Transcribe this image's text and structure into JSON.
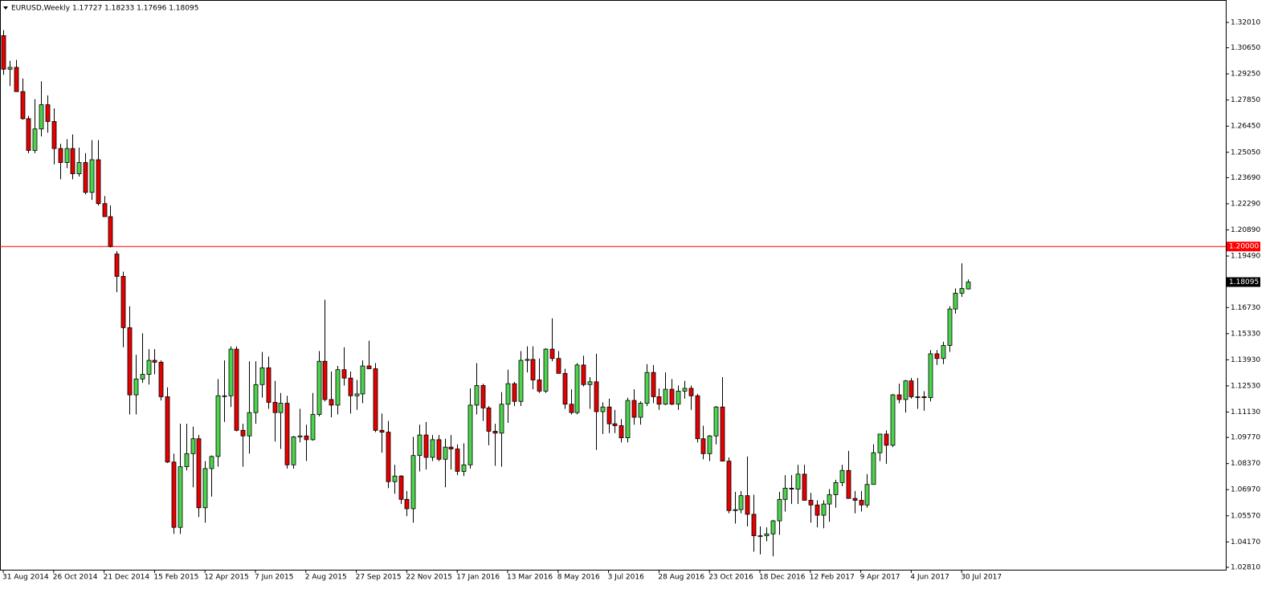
{
  "chart_data": {
    "type": "candlestick",
    "title": "EURUSD,Weekly  1.17727 1.18233 1.17696 1.18095",
    "categories": [
      "31 Aug 2014",
      null,
      null,
      null,
      null,
      null,
      null,
      null,
      "26 Oct 2014",
      null,
      null,
      null,
      null,
      null,
      null,
      null,
      "21 Dec 2014",
      null,
      null,
      null,
      null,
      null,
      null,
      null,
      "15 Feb 2015",
      null,
      null,
      null,
      null,
      null,
      null,
      null,
      "12 Apr 2015",
      null,
      null,
      null,
      null,
      null,
      null,
      null,
      "7 Jun 2015",
      null,
      null,
      null,
      null,
      null,
      null,
      null,
      "2 Aug 2015",
      null,
      null,
      null,
      null,
      null,
      null,
      null,
      "27 Sep 2015",
      null,
      null,
      null,
      null,
      null,
      null,
      null,
      "22 Nov 2015",
      null,
      null,
      null,
      null,
      null,
      null,
      null,
      "17 Jan 2016",
      null,
      null,
      null,
      null,
      null,
      null,
      null,
      "13 Mar 2016",
      null,
      null,
      null,
      null,
      null,
      null,
      null,
      "8 May 2016",
      null,
      null,
      null,
      null,
      null,
      null,
      null,
      "3 Jul 2016",
      null,
      null,
      null,
      null,
      null,
      null,
      null,
      "28 Aug 2016",
      null,
      null,
      null,
      null,
      null,
      null,
      null,
      "23 Oct 2016",
      null,
      null,
      null,
      null,
      null,
      null,
      null,
      "18 Dec 2016",
      null,
      null,
      null,
      null,
      null,
      null,
      null,
      "12 Feb 2017",
      null,
      null,
      null,
      null,
      null,
      null,
      null,
      "9 Apr 2017",
      null,
      null,
      null,
      null,
      null,
      null,
      null,
      "4 Jun 2017",
      null,
      null,
      null,
      null,
      null,
      null,
      null,
      "30 Jul 2017",
      null
    ],
    "open": [
      1.313,
      1.295,
      1.296,
      1.283,
      1.2685,
      1.2515,
      1.263,
      1.276,
      1.267,
      1.2525,
      1.245,
      1.2525,
      1.239,
      1.245,
      1.229,
      1.2465,
      1.223,
      1.216,
      1.196,
      1.184,
      1.1565,
      1.1205,
      1.129,
      1.1315,
      1.139,
      1.138,
      1.1195,
      1.0845,
      1.0495,
      1.082,
      1.089,
      1.097,
      1.06,
      1.081,
      1.0875,
      1.12,
      1.12,
      1.145,
      1.1015,
      1.0985,
      1.111,
      1.126,
      1.135,
      1.1165,
      1.111,
      1.116,
      1.083,
      1.098,
      1.0985,
      1.0965,
      1.11,
      1.1385,
      1.118,
      1.115,
      1.134,
      1.1295,
      1.12,
      1.121,
      1.136,
      1.1345,
      1.1015,
      1.1005,
      1.074,
      1.077,
      1.0645,
      1.0595,
      1.088,
      1.099,
      1.087,
      1.0965,
      1.086,
      1.0925,
      1.0915,
      1.0795,
      1.083,
      1.115,
      1.1255,
      1.1135,
      1.101,
      1.1,
      1.1155,
      1.1265,
      1.117,
      1.139,
      1.1395,
      1.1285,
      1.1225,
      1.145,
      1.14,
      1.132,
      1.1155,
      1.111,
      1.1365,
      1.126,
      1.1275,
      1.1115,
      1.114,
      1.105,
      1.104,
      1.0975,
      1.1175,
      1.1085,
      1.116,
      1.1325,
      1.1195,
      1.1155,
      1.1235,
      1.1155,
      1.1225,
      1.124,
      1.12,
      1.097,
      1.089,
      1.0985,
      1.114,
      1.085,
      1.0585,
      1.059,
      1.0665,
      1.0565,
      1.045,
      1.045,
      1.046,
      1.053,
      1.0645,
      1.0705,
      1.07,
      1.078,
      1.064,
      1.0615,
      1.056,
      1.062,
      1.067,
      1.0735,
      1.08,
      1.065,
      1.064,
      1.0615,
      1.0725,
      1.0895,
      1.0995,
      1.0935,
      1.1205,
      1.118,
      1.128,
      1.1195,
      1.1195,
      1.119,
      1.1425,
      1.14,
      1.147,
      1.1665,
      1.175,
      1.17727
    ],
    "high": [
      1.316,
      1.2995,
      1.3,
      1.29,
      1.27,
      1.279,
      1.2885,
      1.281,
      1.274,
      1.255,
      1.2575,
      1.26,
      1.253,
      1.25,
      1.257,
      1.257,
      1.227,
      1.222,
      1.1975,
      1.1865,
      1.168,
      1.142,
      1.1535,
      1.145,
      1.145,
      1.139,
      1.1245,
      1.089,
      1.105,
      1.105,
      1.1035,
      1.099,
      1.085,
      1.088,
      1.129,
      1.139,
      1.1465,
      1.1465,
      1.105,
      1.1385,
      1.1385,
      1.1435,
      1.141,
      1.128,
      1.1215,
      1.12,
      1.0985,
      1.113,
      1.1045,
      1.1215,
      1.144,
      1.1715,
      1.133,
      1.136,
      1.146,
      1.133,
      1.1285,
      1.139,
      1.1495,
      1.1375,
      1.1105,
      1.1065,
      1.083,
      1.0775,
      1.069,
      1.098,
      1.1045,
      1.106,
      1.099,
      1.099,
      1.097,
      1.099,
      1.094,
      1.0945,
      1.124,
      1.1375,
      1.1265,
      1.1145,
      1.105,
      1.122,
      1.134,
      1.1275,
      1.144,
      1.1465,
      1.1465,
      1.14,
      1.1455,
      1.1615,
      1.144,
      1.1345,
      1.1235,
      1.1375,
      1.1415,
      1.13,
      1.1425,
      1.1165,
      1.1185,
      1.1125,
      1.1075,
      1.119,
      1.1235,
      1.117,
      1.137,
      1.1365,
      1.124,
      1.1325,
      1.129,
      1.1255,
      1.128,
      1.1255,
      1.121,
      1.104,
      1.099,
      1.1145,
      1.13,
      1.087,
      1.0685,
      1.069,
      1.0875,
      1.067,
      1.05,
      1.0495,
      1.0535,
      1.0685,
      1.0775,
      1.0775,
      1.083,
      1.083,
      1.068,
      1.064,
      1.064,
      1.07,
      1.075,
      1.083,
      1.0905,
      1.069,
      1.069,
      1.078,
      1.094,
      1.0995,
      1.1015,
      1.121,
      1.1265,
      1.1285,
      1.1295,
      1.1295,
      1.1225,
      1.1445,
      1.1445,
      1.149,
      1.168,
      1.1775,
      1.191,
      1.18233
    ],
    "low": [
      1.292,
      1.286,
      1.2835,
      1.268,
      1.25,
      1.25,
      1.259,
      1.261,
      1.244,
      1.236,
      1.242,
      1.236,
      1.2375,
      1.228,
      1.225,
      1.222,
      1.216,
      1.1995,
      1.1755,
      1.146,
      1.11,
      1.11,
      1.127,
      1.126,
      1.1315,
      1.1175,
      1.084,
      1.046,
      1.046,
      1.08,
      1.071,
      1.055,
      1.052,
      1.066,
      1.082,
      1.106,
      1.114,
      1.101,
      1.082,
      1.089,
      1.105,
      1.119,
      1.113,
      1.0955,
      1.0915,
      1.081,
      1.081,
      1.095,
      1.085,
      1.096,
      1.109,
      1.117,
      1.1085,
      1.11,
      1.1255,
      1.1105,
      1.1125,
      1.116,
      1.1345,
      1.1005,
      1.0895,
      1.0705,
      1.0675,
      1.062,
      1.0555,
      1.052,
      1.0795,
      1.0805,
      1.085,
      1.085,
      1.071,
      1.0805,
      1.0775,
      1.077,
      1.081,
      1.11,
      1.1065,
      1.0935,
      1.0825,
      1.082,
      1.1055,
      1.1145,
      1.1145,
      1.1325,
      1.1235,
      1.1215,
      1.1215,
      1.1385,
      1.132,
      1.113,
      1.11,
      1.11,
      1.125,
      1.113,
      1.091,
      1.0995,
      1.1,
      1.1,
      1.095,
      1.095,
      1.1045,
      1.1045,
      1.1145,
      1.116,
      1.1125,
      1.115,
      1.115,
      1.1125,
      1.1185,
      1.1125,
      1.095,
      1.086,
      1.085,
      1.094,
      1.085,
      1.057,
      1.0515,
      1.057,
      1.05,
      1.0365,
      1.035,
      1.042,
      1.034,
      1.0455,
      1.058,
      1.062,
      1.062,
      1.064,
      1.052,
      1.0495,
      1.049,
      1.0525,
      1.06,
      1.0715,
      1.065,
      1.057,
      1.058,
      1.06,
      1.0725,
      1.085,
      1.0835,
      1.0925,
      1.116,
      1.111,
      1.1185,
      1.113,
      1.112,
      1.117,
      1.1365,
      1.137,
      1.1435,
      1.164,
      1.173,
      1.17696
    ],
    "close": [
      1.295,
      1.296,
      1.283,
      1.2685,
      1.2515,
      1.263,
      1.276,
      1.267,
      1.2525,
      1.245,
      1.2525,
      1.239,
      1.245,
      1.229,
      1.2465,
      1.223,
      1.216,
      1.2,
      1.184,
      1.1565,
      1.1205,
      1.129,
      1.1315,
      1.139,
      1.138,
      1.1195,
      1.0845,
      1.0495,
      1.082,
      1.089,
      1.097,
      1.06,
      1.081,
      1.0875,
      1.12,
      1.12,
      1.145,
      1.1015,
      1.0985,
      1.111,
      1.126,
      1.135,
      1.1165,
      1.111,
      1.116,
      1.083,
      1.098,
      1.0985,
      1.0965,
      1.11,
      1.1385,
      1.118,
      1.115,
      1.134,
      1.1295,
      1.12,
      1.121,
      1.136,
      1.1345,
      1.1015,
      1.1005,
      1.074,
      1.077,
      1.0645,
      1.0595,
      1.088,
      1.099,
      1.087,
      1.0965,
      1.086,
      1.0925,
      1.0915,
      1.0795,
      1.083,
      1.115,
      1.1255,
      1.1135,
      1.101,
      1.1,
      1.1155,
      1.1265,
      1.117,
      1.139,
      1.1395,
      1.1285,
      1.1225,
      1.145,
      1.14,
      1.132,
      1.1155,
      1.111,
      1.1365,
      1.126,
      1.1275,
      1.1115,
      1.114,
      1.105,
      1.104,
      1.0975,
      1.1175,
      1.1085,
      1.116,
      1.1325,
      1.1195,
      1.1155,
      1.1235,
      1.1155,
      1.1225,
      1.124,
      1.12,
      1.097,
      1.089,
      1.0985,
      1.114,
      1.085,
      1.0585,
      1.059,
      1.0665,
      1.0565,
      1.045,
      1.045,
      1.046,
      1.053,
      1.0645,
      1.0705,
      1.07,
      1.078,
      1.064,
      1.0615,
      1.056,
      1.062,
      1.067,
      1.0735,
      1.08,
      1.065,
      1.064,
      1.0615,
      1.0725,
      1.0895,
      1.0995,
      1.0935,
      1.1205,
      1.118,
      1.128,
      1.1195,
      1.1195,
      1.119,
      1.1425,
      1.14,
      1.147,
      1.1665,
      1.175,
      1.1775,
      1.18095
    ],
    "up_color": "#4cd44c",
    "down_color": "#e60000",
    "ylim": [
      1.0268,
      1.3321
    ],
    "yticks": [
      {
        "value": 1.3201,
        "label": "1.32010"
      },
      {
        "value": 1.3065,
        "label": "1.30650"
      },
      {
        "value": 1.2925,
        "label": "1.29250"
      },
      {
        "value": 1.2785,
        "label": "1.27850"
      },
      {
        "value": 1.2645,
        "label": "1.26450"
      },
      {
        "value": 1.2505,
        "label": "1.25050"
      },
      {
        "value": 1.2369,
        "label": "1.23690"
      },
      {
        "value": 1.2229,
        "label": "1.22290"
      },
      {
        "value": 1.2089,
        "label": "1.20890"
      },
      {
        "value": 1.1949,
        "label": "1.19490"
      },
      {
        "value": 1.1673,
        "label": "1.16730"
      },
      {
        "value": 1.1533,
        "label": "1.15330"
      },
      {
        "value": 1.1393,
        "label": "1.13930"
      },
      {
        "value": 1.1253,
        "label": "1.12530"
      },
      {
        "value": 1.1113,
        "label": "1.11130"
      },
      {
        "value": 1.0977,
        "label": "1.09770"
      },
      {
        "value": 1.0837,
        "label": "1.08370"
      },
      {
        "value": 1.0697,
        "label": "1.06970"
      },
      {
        "value": 1.0557,
        "label": "1.05570"
      },
      {
        "value": 1.0417,
        "label": "1.04170"
      },
      {
        "value": 1.0281,
        "label": "1.02810"
      }
    ],
    "hline": {
      "value": 1.2,
      "label": "1.20000",
      "color": "#ff0000"
    },
    "price_label": "1.18095",
    "grid": false
  }
}
